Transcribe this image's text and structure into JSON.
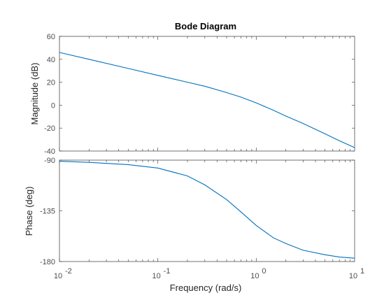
{
  "chart_data": {
    "type": "line",
    "title": "Bode Diagram",
    "xlabel": "Frequency  (rad/s)",
    "x_scale": "log",
    "xlim": [
      0.01,
      10
    ],
    "x_ticks": [
      {
        "value": 0.01,
        "base": "10",
        "exp": "-2"
      },
      {
        "value": 0.1,
        "base": "10",
        "exp": "-1"
      },
      {
        "value": 1,
        "base": "10",
        "exp": "0"
      },
      {
        "value": 10,
        "base": "10",
        "exp": "1"
      }
    ],
    "line_color": "#0072bd",
    "axis_color": "#4d4d4d",
    "panels": [
      {
        "name": "magnitude",
        "ylabel": "Magnitude (dB)",
        "ylim": [
          -40,
          60
        ],
        "yticks": [
          60,
          40,
          20,
          0,
          -20,
          -40
        ],
        "ytick_labels": [
          "60",
          "40",
          "20",
          "0",
          "-20",
          "-40"
        ],
        "series": [
          {
            "x": [
              0.01,
              0.02,
              0.05,
              0.1,
              0.2,
              0.3,
              0.5,
              0.7,
              1,
              1.5,
              2,
              3,
              5,
              7,
              10
            ],
            "y": [
              46,
              40,
              32,
              26,
              20,
              16.5,
              11,
              7,
              2,
              -4.5,
              -9.5,
              -16,
              -25,
              -31,
              -37
            ]
          }
        ]
      },
      {
        "name": "phase",
        "ylabel": "Phase (deg)",
        "ylim": [
          -180,
          -90
        ],
        "yticks": [
          -90,
          -135,
          -180
        ],
        "ytick_labels": [
          "-90",
          "-135",
          "-180"
        ],
        "series": [
          {
            "x": [
              0.01,
              0.02,
              0.05,
              0.1,
              0.2,
              0.3,
              0.5,
              0.7,
              1,
              1.5,
              2,
              3,
              5,
              7,
              10
            ],
            "y": [
              -91,
              -92,
              -94,
              -97,
              -104,
              -112,
              -125,
              -136,
              -148,
              -159,
              -164,
              -170,
              -174,
              -176,
              -177
            ]
          }
        ]
      }
    ]
  }
}
